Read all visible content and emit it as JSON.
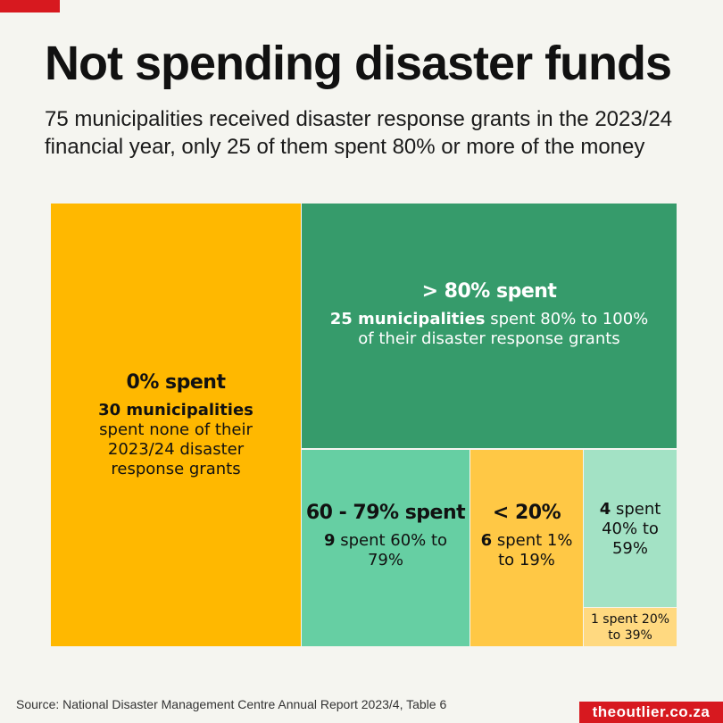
{
  "title": "Not spending disaster funds",
  "subtitle": "75 municipalities received disaster response grants in the 2023/24 financial year, only 25 of them spent 80% or more of the money",
  "chart_data": {
    "type": "treemap",
    "total": 75,
    "cells": [
      {
        "category": "0% spent",
        "value": 30,
        "color": "#ffb800",
        "title": "0% spent",
        "bold": "30 municipalities",
        "rest": " spent none of their 2023/24 disaster response grants"
      },
      {
        "category": "> 80% spent",
        "value": 25,
        "color": "#369b6b",
        "title": "> 80% spent",
        "bold": "25 municipalities",
        "rest": " spent 80% to 100% of their disaster response grants"
      },
      {
        "category": "60 - 79% spent",
        "value": 9,
        "color": "#66cfa3",
        "title": "60 - 79% spent",
        "bold": "9",
        "rest": " spent 60% to 79%"
      },
      {
        "category": "< 20%",
        "value": 6,
        "color": "#ffc845",
        "title": "< 20%",
        "bold": "6",
        "rest": " spent 1% to 19%"
      },
      {
        "category": "40% to 59%",
        "value": 4,
        "color": "#a3e2c5",
        "title": "",
        "bold": "4",
        "rest": " spent 40% to 59%"
      },
      {
        "category": "20% to 39%",
        "value": 1,
        "color": "#ffd980",
        "title": "",
        "bold": "",
        "rest": "1 spent 20% to 39%"
      }
    ]
  },
  "source": "Source: National Disaster Management Centre Annual Report 2023/4, Table 6",
  "brand": "theoutlier.co.za"
}
